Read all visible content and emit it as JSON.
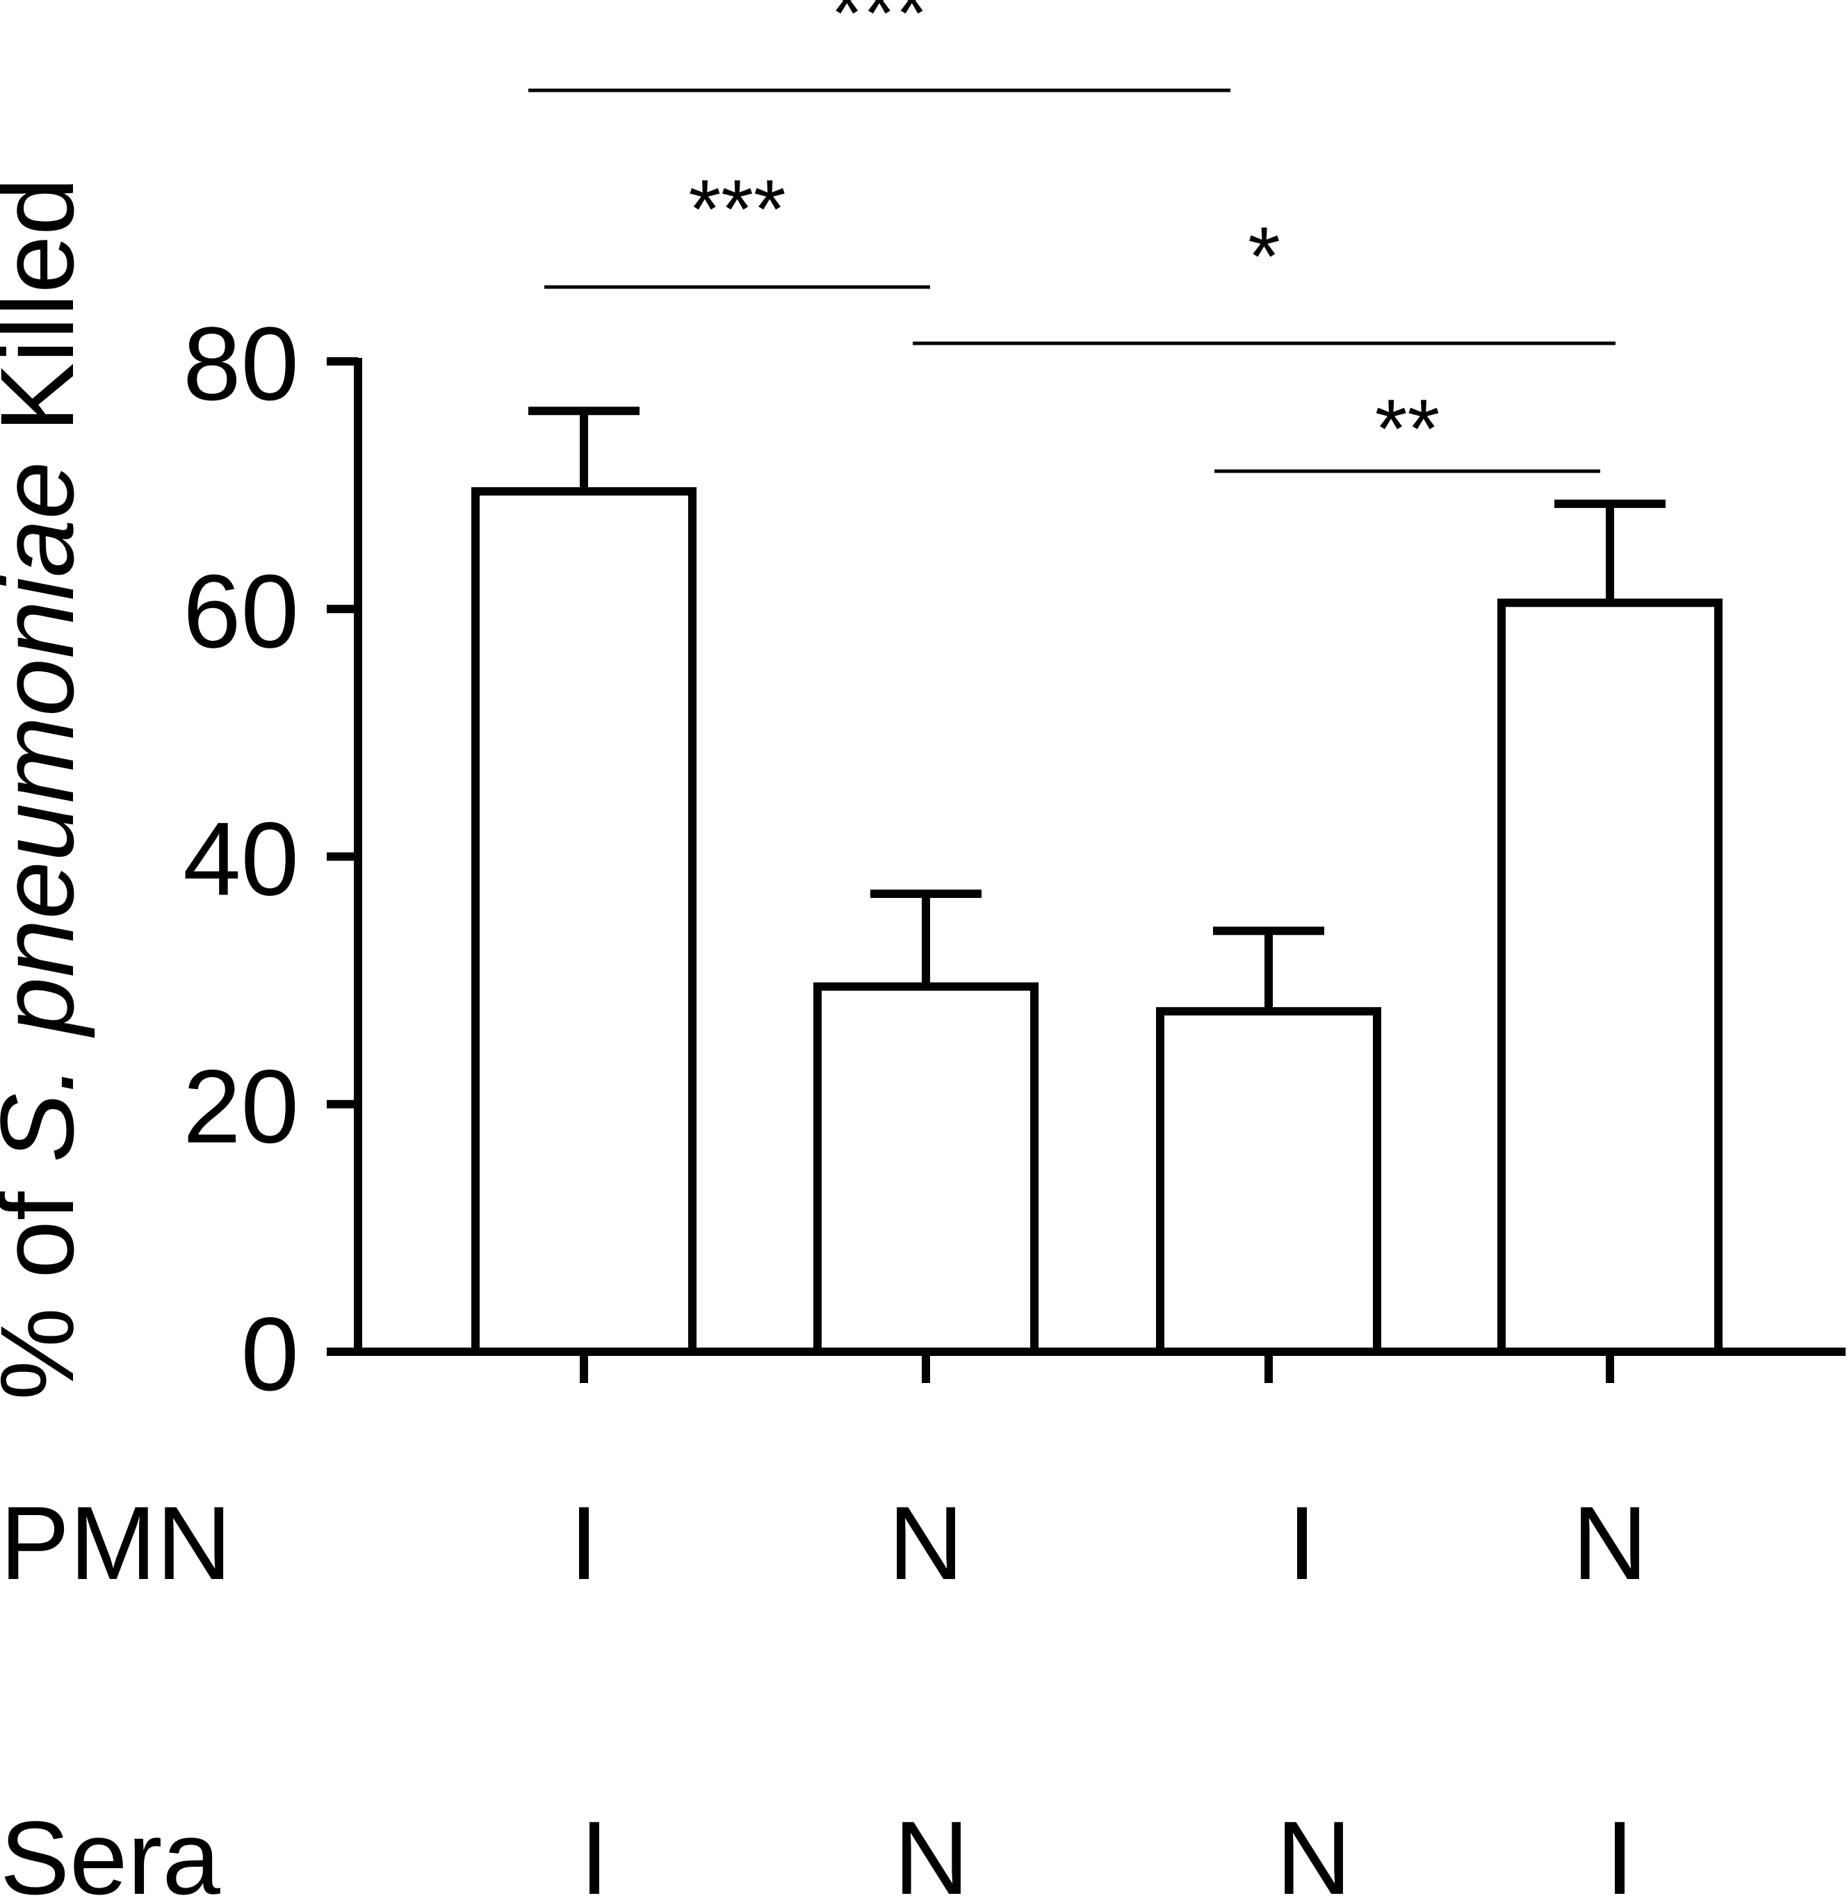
{
  "chart_data": {
    "type": "bar",
    "title": "",
    "xlabel": "",
    "ylabel_prefix": "% of ",
    "ylabel_italic": "S. pneumoniae",
    "ylabel_suffix": " Killed",
    "ylim": [
      0,
      80
    ],
    "yticks": [
      0,
      20,
      40,
      60,
      80
    ],
    "categories": [
      "I / I",
      "N / N",
      "I / N",
      "N / I"
    ],
    "series": [
      {
        "values": [
          69.5,
          29.5,
          27.5,
          60.5
        ],
        "errors": [
          6.5,
          7.5,
          6.5,
          8.0
        ]
      }
    ],
    "group_rows": [
      {
        "label": "PMN",
        "values": [
          "I",
          "N",
          "I",
          "N"
        ]
      },
      {
        "label": "Sera",
        "values": [
          "I",
          "N",
          "N",
          "I"
        ]
      }
    ],
    "significance": [
      {
        "from": 0,
        "to": 2,
        "label": "***"
      },
      {
        "from": 0,
        "to": 1,
        "label": "***"
      },
      {
        "from": 1,
        "to": 3,
        "label": "*"
      },
      {
        "from": 2,
        "to": 3,
        "label": "**"
      }
    ],
    "colors": {
      "bar_fill": "#ffffff",
      "stroke": "#000000"
    },
    "grid": false,
    "legend": "none"
  }
}
